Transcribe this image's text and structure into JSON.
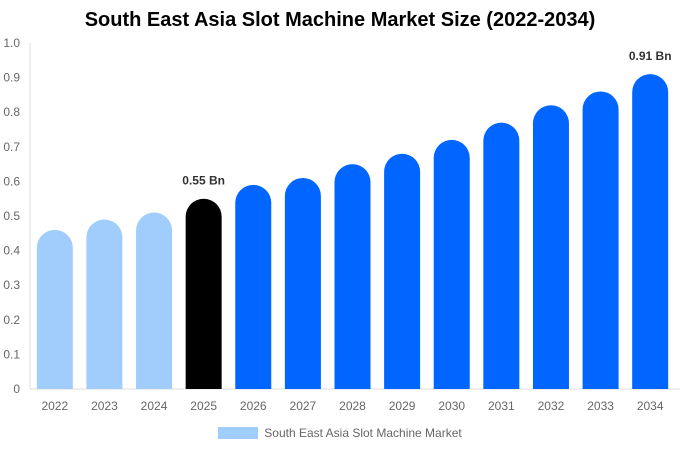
{
  "chart_data": {
    "type": "bar",
    "title": "South East Asia Slot Machine Market Size (2022-2034)",
    "categories": [
      "2022",
      "2023",
      "2024",
      "2025",
      "2026",
      "2027",
      "2028",
      "2029",
      "2030",
      "2031",
      "2032",
      "2033",
      "2034"
    ],
    "series": [
      {
        "name": "South East Asia Slot Machine Market",
        "values": [
          0.46,
          0.49,
          0.51,
          0.55,
          0.59,
          0.61,
          0.65,
          0.68,
          0.72,
          0.77,
          0.82,
          0.86,
          0.91
        ]
      }
    ],
    "data_labels": {
      "3": "0.55 Bn",
      "12": "0.91 Bn"
    },
    "ylim": [
      0,
      1.0
    ],
    "yticks": [
      "0",
      "0.1",
      "0.2",
      "0.3",
      "0.4",
      "0.5",
      "0.6",
      "0.7",
      "0.8",
      "0.9",
      "1.0"
    ],
    "colors": {
      "historical": "#a1cdfc",
      "current": "#000000",
      "forecast": "#0066ff"
    },
    "legend_color": "#a1cdfc",
    "legend_position": "bottom",
    "grid": false
  }
}
